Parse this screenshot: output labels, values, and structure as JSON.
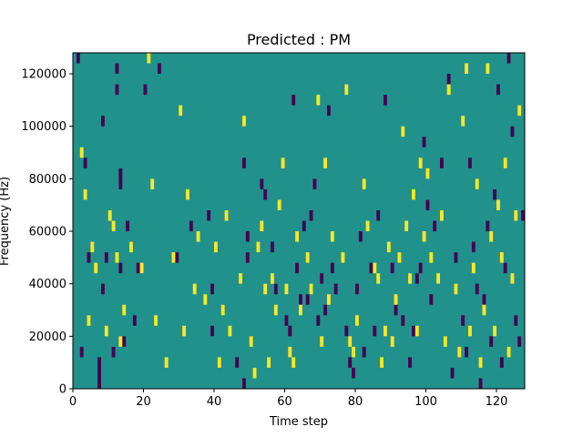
{
  "chart_data": {
    "type": "heatmap",
    "title": "Predicted : PM",
    "xlabel": "Time step",
    "ylabel": "Frequency (Hz)",
    "xlim": [
      0,
      128
    ],
    "ylim": [
      0,
      128000
    ],
    "grid": false,
    "x_ticks": [
      0,
      20,
      40,
      60,
      80,
      100,
      120
    ],
    "x_tick_labels": [
      "0",
      "20",
      "40",
      "60",
      "80",
      "100",
      "120"
    ],
    "y_ticks": [
      0,
      20000,
      40000,
      60000,
      80000,
      100000,
      120000
    ],
    "y_tick_labels": [
      "0",
      "20000",
      "40000",
      "60000",
      "80000",
      "100000",
      "120000"
    ],
    "background_value": 0,
    "colors": {
      "low": "#440154",
      "background": "#21918c",
      "high": "#fde725"
    },
    "note_hz_per_cell": 4000,
    "low_cells": [
      [
        1,
        124000
      ],
      [
        2,
        12000
      ],
      [
        3,
        84000
      ],
      [
        4,
        48000
      ],
      [
        7,
        8000
      ],
      [
        7,
        4000
      ],
      [
        7,
        0
      ],
      [
        8,
        36000
      ],
      [
        8,
        100000
      ],
      [
        9,
        48000
      ],
      [
        11,
        12000
      ],
      [
        12,
        112000
      ],
      [
        12,
        120000
      ],
      [
        13,
        44000
      ],
      [
        13,
        76000
      ],
      [
        13,
        80000
      ],
      [
        14,
        16000
      ],
      [
        15,
        60000
      ],
      [
        17,
        24000
      ],
      [
        18,
        44000
      ],
      [
        20,
        112000
      ],
      [
        24,
        120000
      ],
      [
        29,
        48000
      ],
      [
        33,
        60000
      ],
      [
        38,
        64000
      ],
      [
        39,
        20000
      ],
      [
        39,
        36000
      ],
      [
        46,
        8000
      ],
      [
        48,
        0
      ],
      [
        48,
        84000
      ],
      [
        49,
        48000
      ],
      [
        49,
        56000
      ],
      [
        53,
        76000
      ],
      [
        54,
        72000
      ],
      [
        56,
        52000
      ],
      [
        57,
        36000
      ],
      [
        60,
        24000
      ],
      [
        61,
        20000
      ],
      [
        62,
        108000
      ],
      [
        63,
        44000
      ],
      [
        64,
        32000
      ],
      [
        65,
        60000
      ],
      [
        66,
        32000
      ],
      [
        67,
        64000
      ],
      [
        68,
        76000
      ],
      [
        69,
        24000
      ],
      [
        70,
        40000
      ],
      [
        71,
        28000
      ],
      [
        72,
        104000
      ],
      [
        73,
        44000
      ],
      [
        74,
        36000
      ],
      [
        77,
        20000
      ],
      [
        78,
        8000
      ],
      [
        79,
        4000
      ],
      [
        80,
        36000
      ],
      [
        81,
        56000
      ],
      [
        82,
        12000
      ],
      [
        84,
        44000
      ],
      [
        85,
        20000
      ],
      [
        86,
        64000
      ],
      [
        88,
        108000
      ],
      [
        90,
        44000
      ],
      [
        91,
        28000
      ],
      [
        93,
        24000
      ],
      [
        95,
        8000
      ],
      [
        96,
        20000
      ],
      [
        97,
        40000
      ],
      [
        98,
        44000
      ],
      [
        99,
        92000
      ],
      [
        100,
        68000
      ],
      [
        101,
        32000
      ],
      [
        102,
        60000
      ],
      [
        104,
        84000
      ],
      [
        106,
        116000
      ],
      [
        107,
        4000
      ],
      [
        108,
        48000
      ],
      [
        110,
        24000
      ],
      [
        111,
        12000
      ],
      [
        112,
        84000
      ],
      [
        113,
        52000
      ],
      [
        114,
        36000
      ],
      [
        115,
        0
      ],
      [
        116,
        32000
      ],
      [
        117,
        60000
      ],
      [
        118,
        16000
      ],
      [
        119,
        72000
      ],
      [
        120,
        112000
      ],
      [
        121,
        8000
      ],
      [
        122,
        44000
      ],
      [
        123,
        124000
      ],
      [
        124,
        96000
      ],
      [
        125,
        24000
      ],
      [
        126,
        16000
      ],
      [
        127,
        64000
      ]
    ],
    "high_cells": [
      [
        2,
        88000
      ],
      [
        3,
        72000
      ],
      [
        4,
        24000
      ],
      [
        5,
        52000
      ],
      [
        6,
        44000
      ],
      [
        9,
        20000
      ],
      [
        10,
        64000
      ],
      [
        11,
        60000
      ],
      [
        12,
        48000
      ],
      [
        13,
        16000
      ],
      [
        14,
        28000
      ],
      [
        16,
        52000
      ],
      [
        19,
        44000
      ],
      [
        21,
        124000
      ],
      [
        22,
        76000
      ],
      [
        23,
        24000
      ],
      [
        26,
        8000
      ],
      [
        28,
        48000
      ],
      [
        30,
        104000
      ],
      [
        31,
        20000
      ],
      [
        32,
        72000
      ],
      [
        34,
        36000
      ],
      [
        35,
        56000
      ],
      [
        37,
        32000
      ],
      [
        40,
        52000
      ],
      [
        41,
        8000
      ],
      [
        42,
        28000
      ],
      [
        43,
        64000
      ],
      [
        44,
        20000
      ],
      [
        47,
        40000
      ],
      [
        48,
        100000
      ],
      [
        50,
        16000
      ],
      [
        51,
        4000
      ],
      [
        52,
        52000
      ],
      [
        53,
        60000
      ],
      [
        54,
        36000
      ],
      [
        55,
        8000
      ],
      [
        56,
        40000
      ],
      [
        57,
        28000
      ],
      [
        58,
        68000
      ],
      [
        59,
        84000
      ],
      [
        60,
        36000
      ],
      [
        61,
        12000
      ],
      [
        62,
        8000
      ],
      [
        63,
        56000
      ],
      [
        64,
        28000
      ],
      [
        66,
        48000
      ],
      [
        67,
        36000
      ],
      [
        69,
        108000
      ],
      [
        70,
        16000
      ],
      [
        71,
        84000
      ],
      [
        72,
        32000
      ],
      [
        73,
        56000
      ],
      [
        76,
        48000
      ],
      [
        77,
        112000
      ],
      [
        78,
        16000
      ],
      [
        79,
        12000
      ],
      [
        80,
        24000
      ],
      [
        82,
        76000
      ],
      [
        83,
        60000
      ],
      [
        85,
        44000
      ],
      [
        86,
        40000
      ],
      [
        87,
        8000
      ],
      [
        88,
        20000
      ],
      [
        89,
        52000
      ],
      [
        90,
        16000
      ],
      [
        91,
        32000
      ],
      [
        92,
        48000
      ],
      [
        93,
        96000
      ],
      [
        94,
        60000
      ],
      [
        95,
        40000
      ],
      [
        96,
        72000
      ],
      [
        97,
        20000
      ],
      [
        98,
        84000
      ],
      [
        99,
        56000
      ],
      [
        100,
        80000
      ],
      [
        101,
        48000
      ],
      [
        103,
        40000
      ],
      [
        104,
        64000
      ],
      [
        105,
        16000
      ],
      [
        106,
        112000
      ],
      [
        108,
        36000
      ],
      [
        109,
        12000
      ],
      [
        110,
        100000
      ],
      [
        111,
        120000
      ],
      [
        112,
        20000
      ],
      [
        113,
        44000
      ],
      [
        114,
        76000
      ],
      [
        115,
        8000
      ],
      [
        116,
        28000
      ],
      [
        117,
        120000
      ],
      [
        118,
        56000
      ],
      [
        119,
        20000
      ],
      [
        120,
        68000
      ],
      [
        121,
        48000
      ],
      [
        122,
        84000
      ],
      [
        123,
        12000
      ],
      [
        124,
        40000
      ],
      [
        125,
        64000
      ],
      [
        126,
        104000
      ]
    ]
  }
}
